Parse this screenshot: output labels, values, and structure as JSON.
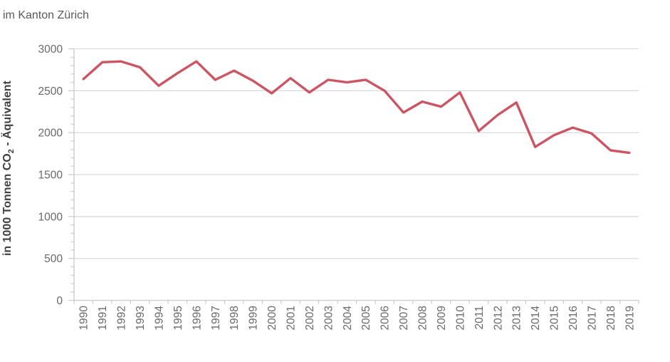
{
  "title": "im Kanton Zürich",
  "y_axis": {
    "label_pre": "in 1000 Tonnen CO",
    "label_sub": "2",
    "label_post": " - Äquivalent",
    "ticks": [
      0,
      500,
      1000,
      1500,
      2000,
      2500,
      3000
    ],
    "minor_tick_step": 100
  },
  "colors": {
    "line": "#cb5562",
    "gridline": "#dcdcdc",
    "axis": "#c9c9c9",
    "tick": "#c9c9c9",
    "tick_label": "#696969",
    "title": "#595959",
    "axis_title": "#404040"
  },
  "chart_data": {
    "type": "line",
    "title": "im Kanton Zürich",
    "ylabel": "in 1000 Tonnen CO2 - Äquivalent",
    "xlabel": "",
    "ylim": [
      0,
      3000
    ],
    "grid": "horizontal",
    "legend": "none",
    "x": [
      "1990",
      "1991",
      "1992",
      "1993",
      "1994",
      "1995",
      "1996",
      "1997",
      "1998",
      "1999",
      "2000",
      "2001",
      "2002",
      "2003",
      "2004",
      "2005",
      "2006",
      "2007",
      "2008",
      "2009",
      "2010",
      "2011",
      "2012",
      "2013",
      "2014",
      "2015",
      "2016",
      "2017",
      "2018",
      "2019"
    ],
    "values": [
      2640,
      2840,
      2850,
      2780,
      2560,
      2710,
      2850,
      2630,
      2740,
      2620,
      2470,
      2650,
      2480,
      2630,
      2600,
      2630,
      2500,
      2240,
      2370,
      2310,
      2480,
      2020,
      2210,
      2360,
      1830,
      1970,
      2060,
      1990,
      1790,
      1760
    ]
  }
}
